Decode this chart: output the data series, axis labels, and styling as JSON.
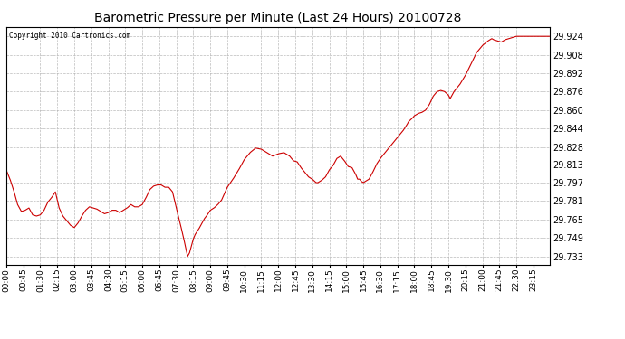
{
  "title": "Barometric Pressure per Minute (Last 24 Hours) 20100728",
  "copyright": "Copyright 2010 Cartronics.com",
  "line_color": "#cc0000",
  "background_color": "#ffffff",
  "grid_color": "#aaaaaa",
  "yticks": [
    29.733,
    29.749,
    29.765,
    29.781,
    29.797,
    29.813,
    29.828,
    29.844,
    29.86,
    29.876,
    29.892,
    29.908,
    29.924
  ],
  "xtick_labels": [
    "00:00",
    "00:45",
    "01:30",
    "02:15",
    "03:00",
    "03:45",
    "04:30",
    "05:15",
    "06:00",
    "06:45",
    "07:30",
    "08:15",
    "09:00",
    "09:45",
    "10:30",
    "11:15",
    "12:00",
    "12:45",
    "13:30",
    "14:15",
    "15:00",
    "15:45",
    "16:30",
    "17:15",
    "18:00",
    "18:45",
    "19:30",
    "20:15",
    "21:00",
    "21:45",
    "22:30",
    "23:15"
  ],
  "ylim": [
    29.726,
    29.932
  ],
  "num_minutes": 1440,
  "key_points": [
    [
      0,
      29.808
    ],
    [
      10,
      29.8
    ],
    [
      20,
      29.79
    ],
    [
      30,
      29.778
    ],
    [
      40,
      29.772
    ],
    [
      50,
      29.773
    ],
    [
      60,
      29.775
    ],
    [
      70,
      29.769
    ],
    [
      80,
      29.768
    ],
    [
      90,
      29.769
    ],
    [
      100,
      29.773
    ],
    [
      110,
      29.78
    ],
    [
      120,
      29.784
    ],
    [
      130,
      29.789
    ],
    [
      140,
      29.775
    ],
    [
      150,
      29.768
    ],
    [
      160,
      29.764
    ],
    [
      170,
      29.76
    ],
    [
      180,
      29.758
    ],
    [
      190,
      29.762
    ],
    [
      200,
      29.768
    ],
    [
      210,
      29.773
    ],
    [
      220,
      29.776
    ],
    [
      230,
      29.775
    ],
    [
      240,
      29.774
    ],
    [
      250,
      29.772
    ],
    [
      260,
      29.77
    ],
    [
      270,
      29.771
    ],
    [
      280,
      29.773
    ],
    [
      290,
      29.773
    ],
    [
      300,
      29.771
    ],
    [
      310,
      29.773
    ],
    [
      320,
      29.775
    ],
    [
      330,
      29.778
    ],
    [
      340,
      29.776
    ],
    [
      350,
      29.776
    ],
    [
      360,
      29.778
    ],
    [
      370,
      29.784
    ],
    [
      380,
      29.791
    ],
    [
      390,
      29.794
    ],
    [
      400,
      29.795
    ],
    [
      410,
      29.795
    ],
    [
      420,
      29.793
    ],
    [
      430,
      29.793
    ],
    [
      440,
      29.789
    ],
    [
      450,
      29.775
    ],
    [
      460,
      29.762
    ],
    [
      470,
      29.748
    ],
    [
      475,
      29.74
    ],
    [
      480,
      29.733
    ],
    [
      485,
      29.736
    ],
    [
      490,
      29.742
    ],
    [
      495,
      29.748
    ],
    [
      500,
      29.752
    ],
    [
      510,
      29.757
    ],
    [
      520,
      29.763
    ],
    [
      525,
      29.766
    ],
    [
      530,
      29.768
    ],
    [
      540,
      29.773
    ],
    [
      550,
      29.775
    ],
    [
      560,
      29.778
    ],
    [
      570,
      29.782
    ],
    [
      585,
      29.793
    ],
    [
      600,
      29.8
    ],
    [
      615,
      29.808
    ],
    [
      630,
      29.817
    ],
    [
      645,
      29.823
    ],
    [
      660,
      29.827
    ],
    [
      675,
      29.826
    ],
    [
      690,
      29.823
    ],
    [
      705,
      29.82
    ],
    [
      720,
      29.822
    ],
    [
      735,
      29.823
    ],
    [
      750,
      29.82
    ],
    [
      760,
      29.816
    ],
    [
      770,
      29.815
    ],
    [
      780,
      29.81
    ],
    [
      790,
      29.806
    ],
    [
      800,
      29.802
    ],
    [
      810,
      29.8
    ],
    [
      820,
      29.797
    ],
    [
      825,
      29.797
    ],
    [
      835,
      29.799
    ],
    [
      845,
      29.802
    ],
    [
      855,
      29.808
    ],
    [
      865,
      29.812
    ],
    [
      875,
      29.818
    ],
    [
      885,
      29.82
    ],
    [
      895,
      29.816
    ],
    [
      905,
      29.811
    ],
    [
      915,
      29.81
    ],
    [
      925,
      29.804
    ],
    [
      930,
      29.8
    ],
    [
      935,
      29.8
    ],
    [
      940,
      29.798
    ],
    [
      945,
      29.797
    ],
    [
      950,
      29.798
    ],
    [
      960,
      29.8
    ],
    [
      970,
      29.806
    ],
    [
      980,
      29.813
    ],
    [
      990,
      29.818
    ],
    [
      1000,
      29.822
    ],
    [
      1010,
      29.826
    ],
    [
      1020,
      29.83
    ],
    [
      1030,
      29.834
    ],
    [
      1040,
      29.838
    ],
    [
      1050,
      29.842
    ],
    [
      1060,
      29.847
    ],
    [
      1065,
      29.85
    ],
    [
      1075,
      29.853
    ],
    [
      1080,
      29.855
    ],
    [
      1090,
      29.857
    ],
    [
      1100,
      29.858
    ],
    [
      1110,
      29.86
    ],
    [
      1120,
      29.865
    ],
    [
      1130,
      29.872
    ],
    [
      1140,
      29.876
    ],
    [
      1150,
      29.877
    ],
    [
      1160,
      29.876
    ],
    [
      1170,
      29.873
    ],
    [
      1175,
      29.87
    ],
    [
      1185,
      29.876
    ],
    [
      1200,
      29.882
    ],
    [
      1215,
      29.89
    ],
    [
      1230,
      29.9
    ],
    [
      1245,
      29.91
    ],
    [
      1260,
      29.916
    ],
    [
      1275,
      29.92
    ],
    [
      1285,
      29.922
    ],
    [
      1290,
      29.921
    ],
    [
      1300,
      29.92
    ],
    [
      1310,
      29.919
    ],
    [
      1320,
      29.921
    ],
    [
      1330,
      29.922
    ],
    [
      1340,
      29.923
    ],
    [
      1350,
      29.924
    ],
    [
      1360,
      29.924
    ],
    [
      1380,
      29.924
    ],
    [
      1400,
      29.924
    ],
    [
      1420,
      29.924
    ],
    [
      1439,
      29.924
    ]
  ]
}
